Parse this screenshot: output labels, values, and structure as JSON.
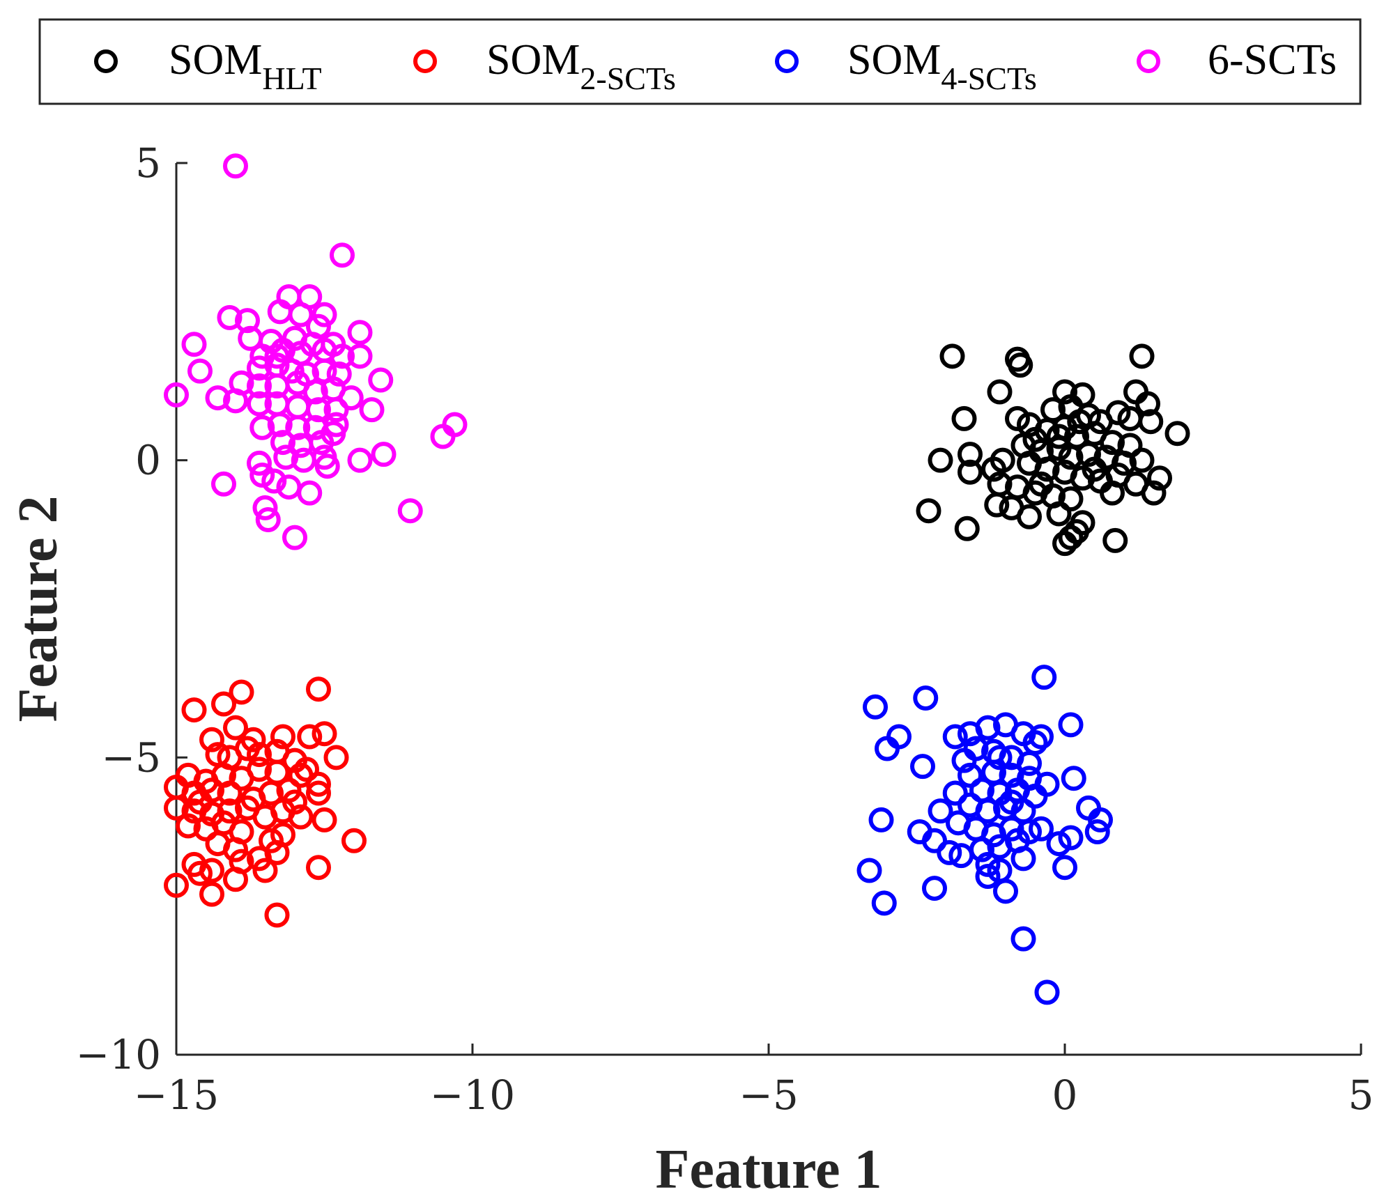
{
  "chart_data": {
    "type": "scatter",
    "title": "",
    "xlabel": "Feature 1",
    "ylabel": "Feature 2",
    "xlim": [
      -15,
      5
    ],
    "ylim": [
      -10,
      5
    ],
    "xticks": [
      -15,
      -10,
      -5,
      0,
      5
    ],
    "yticks": [
      -10,
      -5,
      0,
      5
    ],
    "xtick_labels": [
      "−15",
      "−10",
      "−5",
      "0",
      "5"
    ],
    "ytick_labels": [
      "−10",
      "−5",
      "0",
      "5"
    ],
    "grid": false,
    "legend_placement": "top, horizontal, outside",
    "marker": "open circle",
    "series": [
      {
        "name": "SOM_HLT",
        "label": "SOM",
        "sub": "HLT",
        "color": "#000000",
        "points": [
          [
            -1.9,
            1.75
          ],
          [
            -0.8,
            1.7
          ],
          [
            -0.75,
            1.6
          ],
          [
            1.3,
            1.75
          ],
          [
            -1.1,
            1.15
          ],
          [
            0.0,
            1.15
          ],
          [
            0.3,
            1.1
          ],
          [
            1.2,
            1.15
          ],
          [
            1.4,
            0.95
          ],
          [
            -0.8,
            0.7
          ],
          [
            -0.6,
            0.6
          ],
          [
            -0.2,
            0.85
          ],
          [
            0.1,
            0.9
          ],
          [
            0.4,
            0.75
          ],
          [
            0.6,
            0.65
          ],
          [
            0.9,
            0.8
          ],
          [
            1.1,
            0.7
          ],
          [
            1.45,
            0.65
          ],
          [
            1.9,
            0.45
          ],
          [
            -1.7,
            0.7
          ],
          [
            -0.5,
            0.35
          ],
          [
            -0.3,
            0.5
          ],
          [
            0.0,
            0.55
          ],
          [
            0.2,
            0.4
          ],
          [
            0.5,
            0.45
          ],
          [
            0.8,
            0.3
          ],
          [
            1.1,
            0.25
          ],
          [
            -0.7,
            0.25
          ],
          [
            -0.4,
            0.15
          ],
          [
            -0.1,
            0.2
          ],
          [
            0.1,
            0.05
          ],
          [
            0.4,
            0.1
          ],
          [
            0.7,
            0.05
          ],
          [
            1.0,
            -0.05
          ],
          [
            1.3,
            0.0
          ],
          [
            -1.6,
            0.1
          ],
          [
            -2.1,
            0.0
          ],
          [
            -1.6,
            -0.2
          ],
          [
            -1.2,
            -0.15
          ],
          [
            -1.05,
            0.0
          ],
          [
            -0.6,
            -0.05
          ],
          [
            -0.3,
            -0.15
          ],
          [
            0.0,
            -0.2
          ],
          [
            0.3,
            -0.3
          ],
          [
            0.6,
            -0.35
          ],
          [
            0.9,
            -0.25
          ],
          [
            1.2,
            -0.4
          ],
          [
            1.6,
            -0.3
          ],
          [
            1.5,
            -0.55
          ],
          [
            -1.1,
            -0.4
          ],
          [
            -0.8,
            -0.45
          ],
          [
            -0.5,
            -0.55
          ],
          [
            -0.2,
            -0.6
          ],
          [
            0.1,
            -0.65
          ],
          [
            0.8,
            -0.55
          ],
          [
            -1.15,
            -0.75
          ],
          [
            -0.9,
            -0.8
          ],
          [
            -0.6,
            -0.95
          ],
          [
            -0.1,
            -0.9
          ],
          [
            0.3,
            -1.05
          ],
          [
            0.2,
            -1.2
          ],
          [
            0.1,
            -1.3
          ],
          [
            0.0,
            -1.4
          ],
          [
            0.85,
            -1.35
          ],
          [
            -2.3,
            -0.85
          ],
          [
            -1.65,
            -1.15
          ],
          [
            -0.4,
            -0.4
          ],
          [
            0.5,
            -0.15
          ],
          [
            -0.1,
            0.4
          ],
          [
            0.25,
            0.65
          ]
        ]
      },
      {
        "name": "SOM_2-SCTs",
        "label": "SOM",
        "sub": "2-SCTs",
        "color": "#ff0000",
        "points": [
          [
            -12.6,
            -3.85
          ],
          [
            -13.9,
            -3.9
          ],
          [
            -14.2,
            -4.1
          ],
          [
            -14.7,
            -4.2
          ],
          [
            -14.0,
            -4.5
          ],
          [
            -13.7,
            -4.7
          ],
          [
            -13.2,
            -4.65
          ],
          [
            -12.5,
            -4.6
          ],
          [
            -12.75,
            -4.65
          ],
          [
            -14.4,
            -4.7
          ],
          [
            -14.3,
            -4.95
          ],
          [
            -14.1,
            -5.0
          ],
          [
            -13.8,
            -4.85
          ],
          [
            -13.3,
            -4.9
          ],
          [
            -13.0,
            -5.05
          ],
          [
            -12.3,
            -5.0
          ],
          [
            -14.8,
            -5.3
          ],
          [
            -14.5,
            -5.4
          ],
          [
            -14.2,
            -5.3
          ],
          [
            -13.9,
            -5.35
          ],
          [
            -13.6,
            -5.2
          ],
          [
            -13.3,
            -5.25
          ],
          [
            -12.9,
            -5.3
          ],
          [
            -12.6,
            -5.45
          ],
          [
            -15.0,
            -5.5
          ],
          [
            -14.7,
            -5.6
          ],
          [
            -14.4,
            -5.55
          ],
          [
            -14.1,
            -5.6
          ],
          [
            -13.7,
            -5.7
          ],
          [
            -13.4,
            -5.6
          ],
          [
            -13.1,
            -5.55
          ],
          [
            -12.6,
            -5.6
          ],
          [
            -15.0,
            -5.85
          ],
          [
            -14.7,
            -5.9
          ],
          [
            -14.4,
            -5.95
          ],
          [
            -14.1,
            -5.9
          ],
          [
            -13.8,
            -5.85
          ],
          [
            -13.5,
            -6.0
          ],
          [
            -13.2,
            -5.9
          ],
          [
            -12.9,
            -6.0
          ],
          [
            -12.5,
            -6.05
          ],
          [
            -14.8,
            -6.15
          ],
          [
            -14.5,
            -6.2
          ],
          [
            -14.2,
            -6.1
          ],
          [
            -13.9,
            -6.25
          ],
          [
            -13.4,
            -6.4
          ],
          [
            -13.2,
            -6.3
          ],
          [
            -14.3,
            -6.45
          ],
          [
            -14.0,
            -6.55
          ],
          [
            -13.6,
            -6.7
          ],
          [
            -13.3,
            -6.6
          ],
          [
            -14.7,
            -6.8
          ],
          [
            -14.4,
            -6.9
          ],
          [
            -13.9,
            -6.75
          ],
          [
            -13.5,
            -6.9
          ],
          [
            -12.6,
            -6.85
          ],
          [
            -14.0,
            -7.05
          ],
          [
            -15.0,
            -7.15
          ],
          [
            -14.4,
            -7.3
          ],
          [
            -13.3,
            -7.65
          ],
          [
            -12.0,
            -6.4
          ],
          [
            -14.6,
            -6.95
          ],
          [
            -13.6,
            -4.95
          ],
          [
            -14.6,
            -5.75
          ],
          [
            -13.0,
            -5.75
          ],
          [
            -12.8,
            -5.2
          ]
        ]
      },
      {
        "name": "SOM_4-SCTs",
        "label": "SOM",
        "sub": "4-SCTs",
        "color": "#0000ff",
        "points": [
          [
            -0.35,
            -3.65
          ],
          [
            -2.35,
            -4.0
          ],
          [
            -3.2,
            -4.15
          ],
          [
            -2.8,
            -4.65
          ],
          [
            -3.0,
            -4.85
          ],
          [
            -2.4,
            -5.15
          ],
          [
            -1.85,
            -4.65
          ],
          [
            -1.6,
            -4.6
          ],
          [
            -1.3,
            -4.5
          ],
          [
            -1.0,
            -4.45
          ],
          [
            -0.7,
            -4.6
          ],
          [
            -0.4,
            -4.65
          ],
          [
            0.1,
            -4.45
          ],
          [
            -1.5,
            -4.85
          ],
          [
            -1.2,
            -4.9
          ],
          [
            -0.9,
            -5.0
          ],
          [
            -0.6,
            -5.1
          ],
          [
            -1.2,
            -5.25
          ],
          [
            -0.9,
            -5.3
          ],
          [
            -0.6,
            -5.35
          ],
          [
            -0.3,
            -5.45
          ],
          [
            -1.6,
            -5.3
          ],
          [
            -1.4,
            -5.55
          ],
          [
            -1.1,
            -5.6
          ],
          [
            -0.8,
            -5.55
          ],
          [
            -0.5,
            -5.65
          ],
          [
            -1.85,
            -5.6
          ],
          [
            -1.6,
            -5.8
          ],
          [
            -1.3,
            -5.9
          ],
          [
            -1.0,
            -5.85
          ],
          [
            -0.7,
            -5.9
          ],
          [
            -2.1,
            -5.9
          ],
          [
            -1.8,
            -6.1
          ],
          [
            -1.5,
            -6.2
          ],
          [
            -1.2,
            -6.3
          ],
          [
            -0.9,
            -6.2
          ],
          [
            -0.6,
            -6.25
          ],
          [
            -0.4,
            -6.2
          ],
          [
            -2.45,
            -6.25
          ],
          [
            -2.2,
            -6.4
          ],
          [
            -1.95,
            -6.6
          ],
          [
            -1.75,
            -6.65
          ],
          [
            -1.4,
            -6.55
          ],
          [
            -1.1,
            -6.5
          ],
          [
            -0.8,
            -6.4
          ],
          [
            -0.1,
            -6.45
          ],
          [
            0.1,
            -6.35
          ],
          [
            -1.3,
            -6.8
          ],
          [
            -1.1,
            -6.9
          ],
          [
            -1.3,
            -7.0
          ],
          [
            -0.7,
            -6.7
          ],
          [
            0.0,
            -6.85
          ],
          [
            -2.2,
            -7.2
          ],
          [
            -3.3,
            -6.9
          ],
          [
            -3.05,
            -7.45
          ],
          [
            -1.0,
            -7.25
          ],
          [
            0.15,
            -5.35
          ],
          [
            0.4,
            -5.85
          ],
          [
            0.6,
            -6.05
          ],
          [
            0.55,
            -6.25
          ],
          [
            -3.1,
            -6.05
          ],
          [
            -0.7,
            -8.05
          ],
          [
            -0.3,
            -8.95
          ],
          [
            -0.9,
            -5.75
          ],
          [
            -1.1,
            -5.0
          ],
          [
            -0.5,
            -4.75
          ],
          [
            -1.7,
            -5.05
          ]
        ]
      },
      {
        "name": "6-SCTs",
        "label": "6-SCTs",
        "sub": "",
        "color": "#ff00ff",
        "points": [
          [
            -14.0,
            4.95
          ],
          [
            -12.2,
            3.45
          ],
          [
            -13.1,
            2.75
          ],
          [
            -12.75,
            2.75
          ],
          [
            -13.25,
            2.5
          ],
          [
            -12.5,
            2.45
          ],
          [
            -14.1,
            2.4
          ],
          [
            -13.8,
            2.35
          ],
          [
            -12.9,
            2.45
          ],
          [
            -12.6,
            2.25
          ],
          [
            -11.9,
            2.15
          ],
          [
            -13.75,
            2.05
          ],
          [
            -13.4,
            2.0
          ],
          [
            -13.0,
            2.05
          ],
          [
            -12.7,
            1.95
          ],
          [
            -12.35,
            1.95
          ],
          [
            -14.7,
            1.95
          ],
          [
            -13.55,
            1.75
          ],
          [
            -13.2,
            1.85
          ],
          [
            -12.9,
            1.8
          ],
          [
            -12.5,
            1.85
          ],
          [
            -12.2,
            1.75
          ],
          [
            -11.9,
            1.75
          ],
          [
            -14.6,
            1.5
          ],
          [
            -13.6,
            1.55
          ],
          [
            -13.3,
            1.6
          ],
          [
            -13.05,
            1.5
          ],
          [
            -12.8,
            1.45
          ],
          [
            -12.5,
            1.5
          ],
          [
            -12.25,
            1.45
          ],
          [
            -11.55,
            1.35
          ],
          [
            -13.9,
            1.3
          ],
          [
            -13.6,
            1.25
          ],
          [
            -13.3,
            1.25
          ],
          [
            -12.95,
            1.3
          ],
          [
            -12.65,
            1.15
          ],
          [
            -12.35,
            1.2
          ],
          [
            -12.05,
            1.05
          ],
          [
            -15.0,
            1.1
          ],
          [
            -14.3,
            1.05
          ],
          [
            -14.0,
            1.0
          ],
          [
            -13.6,
            0.95
          ],
          [
            -13.3,
            0.95
          ],
          [
            -12.95,
            0.9
          ],
          [
            -12.6,
            0.85
          ],
          [
            -12.3,
            0.85
          ],
          [
            -11.7,
            0.85
          ],
          [
            -13.55,
            0.55
          ],
          [
            -13.25,
            0.6
          ],
          [
            -12.95,
            0.55
          ],
          [
            -12.65,
            0.55
          ],
          [
            -12.3,
            0.6
          ],
          [
            -13.2,
            0.3
          ],
          [
            -12.9,
            0.25
          ],
          [
            -12.55,
            0.3
          ],
          [
            -13.15,
            0.05
          ],
          [
            -12.85,
            0.0
          ],
          [
            -12.5,
            0.05
          ],
          [
            -11.9,
            0.0
          ],
          [
            -11.5,
            0.1
          ],
          [
            -10.5,
            0.4
          ],
          [
            -10.3,
            0.6
          ],
          [
            -13.6,
            -0.05
          ],
          [
            -13.55,
            -0.25
          ],
          [
            -13.35,
            -0.35
          ],
          [
            -12.45,
            -0.1
          ],
          [
            -14.2,
            -0.4
          ],
          [
            -13.1,
            -0.45
          ],
          [
            -12.75,
            -0.55
          ],
          [
            -11.05,
            -0.85
          ],
          [
            -13.5,
            -0.8
          ],
          [
            -13.45,
            -1.0
          ],
          [
            -13.0,
            -1.3
          ],
          [
            -12.35,
            0.45
          ],
          [
            -13.3,
            1.75
          ]
        ]
      }
    ]
  }
}
